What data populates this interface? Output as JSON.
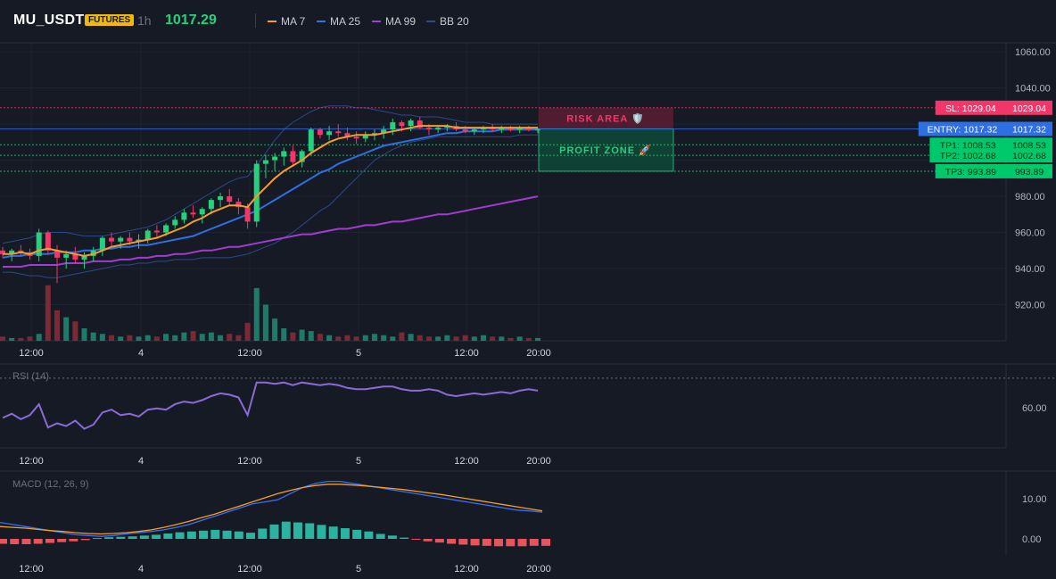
{
  "header": {
    "symbol": "MU_USDT",
    "badge": "FUTURES",
    "timeframe": "1h",
    "last_price": "1017.29",
    "legend": [
      {
        "label": "MA 7",
        "color": "#f59e2c"
      },
      {
        "label": "MA 25",
        "color": "#2f6fe4"
      },
      {
        "label": "MA 99",
        "color": "#a23bd1"
      },
      {
        "label": "BB 20",
        "color": "#2a4a8a"
      }
    ]
  },
  "colors": {
    "up": "#26d07c",
    "down": "#f23669",
    "vol_up": "#1f7a6a",
    "vol_down": "#7a2a36",
    "ma7": "#f59e2c",
    "ma25": "#2f6fe4",
    "ma99": "#a23bd1",
    "bb": "#2a4a8a",
    "rsi": "#8a6ad6",
    "macd": "#3b6ff0",
    "signal": "#f59e2c",
    "hist_up": "#2bb3a0",
    "hist_down": "#e8545c"
  },
  "price_axis": {
    "ticks": [
      "1060.00",
      "1040.00",
      "980.00",
      "960.00",
      "940.00",
      "920.00"
    ],
    "ymin": 900,
    "ymax": 1065
  },
  "time_axis": {
    "labels": [
      "12:00",
      "4",
      "12:00",
      "5",
      "12:00",
      "20:00"
    ]
  },
  "levels": {
    "sl": {
      "label": "SL: 1029.04",
      "value": "1029.04"
    },
    "entry": {
      "label": "ENTRY: 1017.32",
      "value": "1017.32"
    },
    "tp1": {
      "label": "TP1: 1008.53",
      "value": "1008.53"
    },
    "tp2": {
      "label": "TP2: 1002.68",
      "value": "1002.68"
    },
    "tp3": {
      "label": "TP3: 993.89",
      "value": "993.89"
    }
  },
  "zones": {
    "risk": "RISK AREA 🛡️",
    "profit": "PROFIT ZONE 🚀"
  },
  "rsi": {
    "title": "RSI (14)",
    "tick": "60.00"
  },
  "macd": {
    "title": "MACD (12, 26, 9)",
    "ticks": [
      "10.00",
      "0.00"
    ]
  },
  "chart_data": {
    "type": "candlestick",
    "candles": [
      [
        950,
        952,
        946,
        948
      ],
      [
        948,
        951,
        944,
        950
      ],
      [
        950,
        953,
        947,
        949
      ],
      [
        949,
        951,
        945,
        947
      ],
      [
        947,
        962,
        944,
        960
      ],
      [
        960,
        961,
        948,
        950
      ],
      [
        950,
        953,
        932,
        946
      ],
      [
        946,
        950,
        940,
        948
      ],
      [
        948,
        952,
        943,
        945
      ],
      [
        945,
        949,
        940,
        947
      ],
      [
        947,
        952,
        944,
        950
      ],
      [
        950,
        958,
        947,
        957
      ],
      [
        957,
        960,
        952,
        955
      ],
      [
        955,
        958,
        951,
        957
      ],
      [
        957,
        960,
        953,
        955
      ],
      [
        955,
        959,
        951,
        956
      ],
      [
        956,
        962,
        954,
        961
      ],
      [
        961,
        964,
        957,
        960
      ],
      [
        960,
        965,
        958,
        964
      ],
      [
        964,
        969,
        962,
        967
      ],
      [
        967,
        973,
        965,
        971
      ],
      [
        971,
        975,
        968,
        970
      ],
      [
        970,
        974,
        965,
        973
      ],
      [
        973,
        979,
        970,
        978
      ],
      [
        978,
        982,
        974,
        980
      ],
      [
        980,
        984,
        975,
        977
      ],
      [
        977,
        979,
        970,
        974
      ],
      [
        974,
        976,
        962,
        966
      ],
      [
        966,
        1000,
        963,
        998
      ],
      [
        998,
        1003,
        990,
        1000
      ],
      [
        1000,
        1004,
        994,
        1002
      ],
      [
        1002,
        1007,
        997,
        1005
      ],
      [
        1005,
        1008,
        997,
        999
      ],
      [
        999,
        1006,
        996,
        1005
      ],
      [
        1005,
        1018,
        1003,
        1017
      ],
      [
        1017,
        1018,
        1012,
        1014
      ],
      [
        1014,
        1019,
        1011,
        1016
      ],
      [
        1016,
        1020,
        1013,
        1015
      ],
      [
        1015,
        1018,
        1011,
        1013
      ],
      [
        1013,
        1016,
        1009,
        1012
      ],
      [
        1012,
        1016,
        1010,
        1014
      ],
      [
        1014,
        1017,
        1011,
        1015
      ],
      [
        1015,
        1019,
        1012,
        1017
      ],
      [
        1017,
        1023,
        1014,
        1021
      ],
      [
        1021,
        1022,
        1016,
        1019
      ],
      [
        1019,
        1023,
        1016,
        1022
      ],
      [
        1022,
        1024,
        1017,
        1018
      ],
      [
        1018,
        1020,
        1014,
        1017
      ],
      [
        1017,
        1019,
        1015,
        1018
      ],
      [
        1018,
        1020,
        1016,
        1019
      ],
      [
        1019,
        1021,
        1016,
        1017
      ],
      [
        1017,
        1019,
        1015,
        1016
      ],
      [
        1016,
        1018,
        1014,
        1017
      ],
      [
        1017,
        1019,
        1015,
        1018
      ],
      [
        1018,
        1020,
        1016,
        1017
      ],
      [
        1017,
        1019,
        1015,
        1018
      ],
      [
        1018,
        1019,
        1016,
        1017
      ],
      [
        1017,
        1019,
        1015,
        1018
      ],
      [
        1018,
        1019,
        1016,
        1017
      ],
      [
        1017,
        1018,
        1015,
        1017
      ]
    ],
    "volume": [
      3,
      2,
      2,
      3,
      5,
      40,
      22,
      17,
      14,
      9,
      6,
      5,
      4,
      3,
      4,
      3,
      4,
      3,
      5,
      4,
      6,
      7,
      5,
      6,
      4,
      5,
      4,
      13,
      38,
      26,
      16,
      9,
      6,
      8,
      7,
      5,
      4,
      3,
      4,
      3,
      4,
      5,
      4,
      3,
      6,
      5,
      4,
      3,
      3,
      4,
      3,
      4,
      3,
      4,
      3,
      3,
      2,
      3,
      2,
      2
    ],
    "ma7": [
      948,
      948,
      949,
      948,
      950,
      951,
      950,
      949,
      948,
      947,
      948,
      950,
      952,
      953,
      954,
      955,
      956,
      957,
      959,
      961,
      963,
      966,
      968,
      971,
      973,
      975,
      975,
      974,
      980,
      985,
      990,
      994,
      997,
      1000,
      1004,
      1007,
      1010,
      1012,
      1013,
      1014,
      1014,
      1014,
      1015,
      1016,
      1017,
      1018,
      1019,
      1019,
      1019,
      1019,
      1018,
      1018,
      1018,
      1018,
      1018,
      1018,
      1018,
      1018,
      1018,
      1018
    ],
    "ma25": [
      946,
      947,
      947,
      948,
      948,
      948,
      949,
      949,
      949,
      950,
      950,
      951,
      951,
      952,
      952,
      953,
      953,
      954,
      955,
      956,
      957,
      958,
      960,
      962,
      964,
      966,
      968,
      970,
      972,
      975,
      978,
      981,
      984,
      987,
      990,
      993,
      995,
      998,
      1000,
      1002,
      1004,
      1006,
      1008,
      1009,
      1010,
      1011,
      1012,
      1013,
      1014,
      1015,
      1015,
      1016,
      1016,
      1016,
      1016,
      1017,
      1017,
      1017,
      1017,
      1017
    ],
    "ma99": [
      941,
      941,
      941,
      942,
      942,
      942,
      942,
      943,
      943,
      943,
      944,
      944,
      944,
      945,
      945,
      946,
      946,
      947,
      947,
      948,
      948,
      949,
      950,
      950,
      951,
      952,
      952,
      953,
      954,
      955,
      956,
      957,
      958,
      959,
      959,
      960,
      961,
      962,
      962,
      963,
      964,
      964,
      965,
      966,
      966,
      967,
      968,
      969,
      970,
      970,
      971,
      972,
      973,
      974,
      975,
      976,
      977,
      978,
      979,
      980
    ],
    "bb_upper": [
      954,
      955,
      956,
      957,
      959,
      960,
      960,
      960,
      959,
      958,
      958,
      958,
      959,
      960,
      961,
      962,
      963,
      965,
      967,
      970,
      973,
      976,
      979,
      982,
      985,
      988,
      990,
      991,
      997,
      1004,
      1011,
      1017,
      1021,
      1024,
      1027,
      1029,
      1030,
      1030,
      1030,
      1029,
      1029,
      1028,
      1027,
      1026,
      1025,
      1025,
      1024,
      1024,
      1024,
      1023,
      1022,
      1021,
      1021,
      1021,
      1020,
      1020,
      1020,
      1020,
      1020,
      1020
    ],
    "bb_lower": [
      938,
      938,
      937,
      936,
      936,
      935,
      935,
      936,
      937,
      938,
      939,
      940,
      941,
      942,
      942,
      943,
      943,
      944,
      944,
      945,
      945,
      945,
      946,
      946,
      946,
      946,
      947,
      948,
      950,
      952,
      954,
      957,
      960,
      964,
      968,
      972,
      975,
      980,
      985,
      990,
      995,
      1000,
      1003,
      1006,
      1008,
      1010,
      1011,
      1012,
      1013,
      1013,
      1013,
      1013,
      1013,
      1013,
      1013,
      1013,
      1013,
      1014,
      1014,
      1014
    ],
    "rsi": [
      52,
      55,
      51,
      54,
      62,
      45,
      48,
      46,
      50,
      44,
      47,
      56,
      58,
      54,
      55,
      53,
      58,
      59,
      58,
      62,
      64,
      63,
      65,
      68,
      70,
      69,
      67,
      54,
      78,
      78,
      77,
      78,
      76,
      78,
      77,
      76,
      77,
      76,
      74,
      73,
      73,
      74,
      75,
      75,
      73,
      72,
      72,
      73,
      72,
      69,
      68,
      69,
      70,
      69,
      70,
      71,
      70,
      72,
      73,
      72
    ],
    "macd_line": [
      4,
      3.5,
      3,
      2.5,
      2,
      1.5,
      1,
      0.8,
      0.6,
      0.8,
      1.2,
      1.5,
      1.8,
      2.2,
      2.8,
      3.5,
      4.5,
      5.5,
      6.5,
      7.5,
      8.5,
      9,
      9.5,
      11,
      12.5,
      13.5,
      14,
      14,
      13.5,
      13,
      12.5,
      12,
      11.5,
      11,
      10.5,
      10,
      9.5,
      9,
      8.5,
      8,
      7.5,
      7,
      6.8,
      6.5
    ],
    "signal_line": [
      3,
      2.8,
      2.6,
      2.3,
      2,
      1.8,
      1.5,
      1.3,
      1.2,
      1.3,
      1.5,
      1.8,
      2.2,
      2.8,
      3.5,
      4.3,
      5.2,
      6,
      7,
      8,
      9,
      10,
      11,
      11.8,
      12.5,
      13,
      13.3,
      13.3,
      13.1,
      12.9,
      12.6,
      12.3,
      12,
      11.6,
      11.2,
      10.8,
      10.3,
      9.8,
      9.3,
      8.8,
      8.3,
      7.8,
      7.3,
      6.8
    ],
    "histogram": [
      -1.2,
      -1.3,
      -1.3,
      -1.2,
      -1.0,
      -0.8,
      -0.6,
      -0.3,
      0.2,
      0.4,
      0.5,
      0.6,
      0.8,
      1.0,
      1.3,
      1.6,
      1.8,
      2.0,
      2.2,
      2.0,
      1.8,
      1.5,
      2.5,
      3.5,
      4.2,
      4.0,
      3.8,
      3.4,
      3.0,
      2.6,
      2.2,
      1.8,
      1.2,
      0.8,
      0.3,
      -0.2,
      -0.6,
      -0.9,
      -1.2,
      -1.4,
      -1.6,
      -1.7,
      -1.8,
      -1.8,
      -1.8,
      -1.7,
      -1.7
    ]
  }
}
